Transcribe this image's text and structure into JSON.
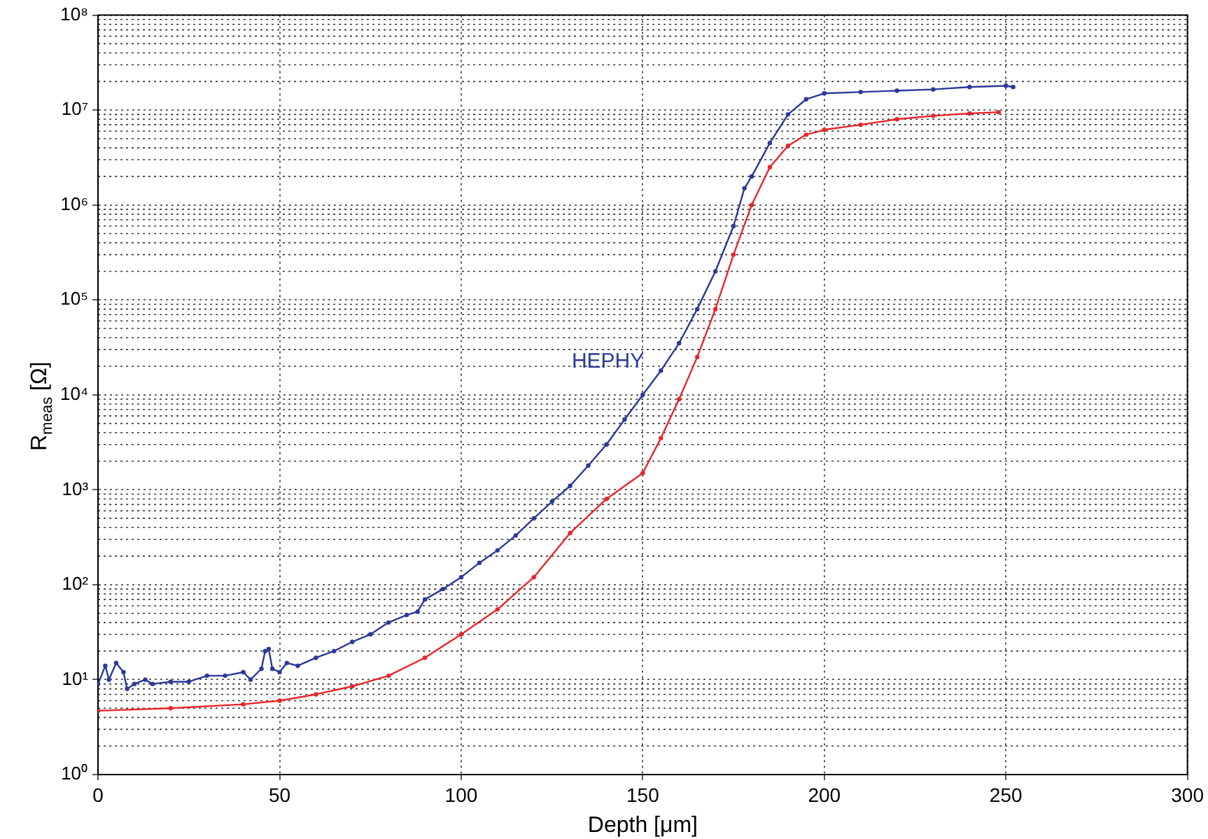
{
  "chart_data": {
    "type": "line",
    "xlabel": "Depth [μm]",
    "ylabel": "R$_{meas}$ [Ω]",
    "log": "y",
    "grid": true,
    "marker": "circle",
    "line_style": "solid",
    "legend": false,
    "xlim": [
      0,
      300
    ],
    "xticks": [
      0,
      50,
      100,
      150,
      200,
      250,
      300
    ],
    "ylim": [
      1,
      100000000
    ],
    "yticks": [
      {
        "value": 1,
        "label": "10⁰"
      },
      {
        "value": 10,
        "label": "10¹"
      },
      {
        "value": 100,
        "label": "10²"
      },
      {
        "value": 1000,
        "label": "10³"
      },
      {
        "value": 10000,
        "label": "10⁴"
      },
      {
        "value": 100000,
        "label": "10⁵"
      },
      {
        "value": 1000000,
        "label": "10⁶"
      },
      {
        "value": 10000000,
        "label": "10⁷"
      },
      {
        "value": 100000000,
        "label": "10⁸"
      }
    ],
    "series": [
      {
        "name": "HEPHY",
        "color": "#2b3a98",
        "x": [
          0,
          2,
          3,
          5,
          7,
          8,
          10,
          13,
          15,
          20,
          25,
          30,
          35,
          40,
          42,
          45,
          46,
          47,
          48,
          50,
          52,
          55,
          60,
          65,
          70,
          75,
          80,
          85,
          88,
          90,
          95,
          100,
          105,
          110,
          115,
          120,
          125,
          130,
          135,
          140,
          145,
          150,
          155,
          160,
          165,
          170,
          175,
          178,
          180,
          185,
          190,
          195,
          200,
          210,
          220,
          230,
          240,
          250,
          252
        ],
        "values": [
          9,
          14,
          10,
          15,
          12,
          8,
          9,
          10,
          9,
          9.5,
          9.5,
          11,
          11,
          12,
          10,
          13,
          20,
          21,
          13,
          12,
          15,
          14,
          17,
          20,
          25,
          30,
          40,
          48,
          52,
          70,
          90,
          120,
          170,
          230,
          330,
          500,
          750,
          1100,
          1800,
          3000,
          5500,
          10000,
          18000,
          35000,
          80000,
          200000,
          600000,
          1500000,
          2000000,
          4500000,
          9000000,
          13000000,
          15000000,
          15500000,
          16000000,
          16500000,
          17500000,
          18000000,
          17500000
        ]
      },
      {
        "color": "#e8262b",
        "x": [
          0,
          20,
          40,
          50,
          60,
          70,
          80,
          90,
          100,
          110,
          120,
          130,
          140,
          150,
          155,
          160,
          165,
          170,
          175,
          180,
          185,
          190,
          195,
          200,
          210,
          220,
          230,
          240,
          248
        ],
        "values": [
          4.7,
          5,
          5.5,
          6,
          7,
          8.5,
          11,
          17,
          30,
          55,
          120,
          350,
          800,
          1500,
          3500,
          9000,
          25000,
          80000,
          300000,
          1000000,
          2500000,
          4200000,
          5500000,
          6200000,
          7000000,
          8000000,
          8700000,
          9200000,
          9500000
        ]
      }
    ]
  }
}
